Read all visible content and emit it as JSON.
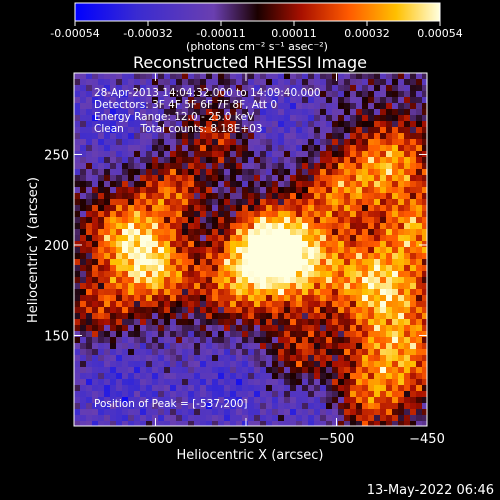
{
  "chart_data": {
    "type": "heatmap",
    "title": "Reconstructed RHESSI Image",
    "xlabel": "Heliocentric X (arcsec)",
    "ylabel": "Heliocentric Y (arcsec)",
    "xlim": [
      -645,
      -450
    ],
    "ylim": [
      100,
      295
    ],
    "x_ticks": [
      -600,
      -550,
      -500,
      -450
    ],
    "y_ticks": [
      150,
      200,
      250
    ],
    "colorbar": {
      "min": -0.00054,
      "max": 0.00054,
      "tick_labels": [
        "-0.00054",
        "-0.00032",
        "-0.00011",
        "0.00011",
        "0.00032",
        "0.00054"
      ],
      "units_label": "(photons cm⁻² s⁻¹ asec⁻²)",
      "colors": [
        "#0000ff",
        "#3a2bd1",
        "#6a3fb0",
        "#220000",
        "#c81c00",
        "#ff6a00",
        "#ffcc00",
        "#ffffd8"
      ]
    },
    "annotations": [
      "28-Apr-2013 14:04:32.000 to 14:09:40.000",
      "Detectors: 3F 4F 5F 6F 7F 8F, Att 0",
      "Energy Range: 12.0 - 25.0 keV",
      "Clean     Total counts: 8.18E+03"
    ],
    "peak_label": "Position of Peak = [-537,200]",
    "peak": {
      "x": -537,
      "y": 200
    }
  },
  "footer": {
    "timestamp": "13-May-2022 06:46"
  }
}
